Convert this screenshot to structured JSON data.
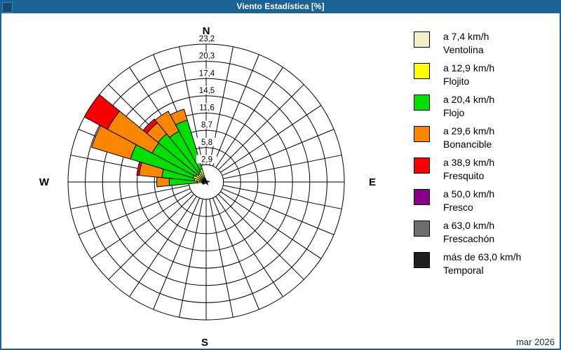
{
  "window": {
    "title": "Viento Estadística [%]"
  },
  "footer": {
    "date_label": "mar 2026"
  },
  "compass": {
    "n": "N",
    "e": "E",
    "s": "S",
    "w": "W"
  },
  "legend": [
    {
      "key": "ventolina",
      "speed": "a 7,4 km/h",
      "name": "Ventolina",
      "color": "#F3EFC7"
    },
    {
      "key": "flojito",
      "speed": "a 12,9 km/h",
      "name": "Flojito",
      "color": "#FFFF00"
    },
    {
      "key": "flojo",
      "speed": "a 20,4 km/h",
      "name": "Flojo",
      "color": "#00E000"
    },
    {
      "key": "bonancible",
      "speed": "a 29,6 km/h",
      "name": "Bonancible",
      "color": "#FA8600"
    },
    {
      "key": "fresquito",
      "speed": "a 38,9 km/h",
      "name": "Fresquito",
      "color": "#F80000"
    },
    {
      "key": "fresco",
      "speed": "a 50,0 km/h",
      "name": "Fresco",
      "color": "#8B008B"
    },
    {
      "key": "frescachon",
      "speed": "a 63,0 km/h",
      "name": "Frescachón",
      "color": "#6E6E6E"
    },
    {
      "key": "temporal",
      "speed": "más de 63,0 km/h",
      "name": "Temporal",
      "color": "#1F1F1F"
    }
  ],
  "chart_data": {
    "type": "wind_rose",
    "title": "Viento Estadística [%]",
    "unit": "%",
    "sectors_total": 32,
    "sector_width_deg": 11.25,
    "rings": 8,
    "radial_ticks": [
      2.9,
      5.8,
      8.7,
      11.6,
      14.5,
      17.4,
      20.3,
      23.2
    ],
    "radial_tick_labels": [
      "2,9",
      "5,8",
      "8,7",
      "11,6",
      "14,5",
      "17,4",
      "20,3",
      "23,2"
    ],
    "rmax": 23.2,
    "stack_order": [
      "ventolina",
      "flojito",
      "flojo",
      "bonancible",
      "fresquito",
      "fresco",
      "frescachon",
      "temporal"
    ],
    "sectors": [
      {
        "dir": "NNW",
        "azimuth_deg": 337.5,
        "cumulative_pct": {
          "ventolina": 0.4,
          "flojito": 2.3,
          "flojo": 10.9,
          "bonancible": 12.8
        }
      },
      {
        "dir": "NW by N",
        "azimuth_deg": 326.25,
        "cumulative_pct": {
          "ventolina": 0.4,
          "flojito": 2.0,
          "flojo": 9.7,
          "bonancible": 13.5
        }
      },
      {
        "dir": "NW",
        "azimuth_deg": 315.0,
        "cumulative_pct": {
          "ventolina": 0.4,
          "flojito": 1.8,
          "flojo": 10.5,
          "bonancible": 12.9,
          "fresquito": 13.7
        }
      },
      {
        "dir": "NW by W",
        "azimuth_deg": 303.75,
        "cumulative_pct": {
          "ventolina": 0.4,
          "flojito": 2.0,
          "flojo": 10.3,
          "bonancible": 18.8,
          "fresquito": 23.2
        }
      },
      {
        "dir": "WNW",
        "azimuth_deg": 292.5,
        "cumulative_pct": {
          "ventolina": 0.4,
          "flojito": 2.3,
          "flojo": 13.3,
          "bonancible": 20.1
        }
      },
      {
        "dir": "W by N",
        "azimuth_deg": 281.25,
        "cumulative_pct": {
          "ventolina": 0.4,
          "flojito": 2.0,
          "flojo": 7.5,
          "bonancible": 11.3,
          "fresquito": 11.7
        }
      },
      {
        "dir": "W",
        "azimuth_deg": 270.0,
        "cumulative_pct": {
          "ventolina": 0.3,
          "flojito": 1.5,
          "flojo": 6.2,
          "bonancible": 8.3
        }
      }
    ]
  },
  "colors": {
    "frame": "#1A6394",
    "titlebar_bg": "#1A6394",
    "titlebar_text": "#FFFFFF",
    "grid": "#000000",
    "footer_text": "#10314F"
  }
}
